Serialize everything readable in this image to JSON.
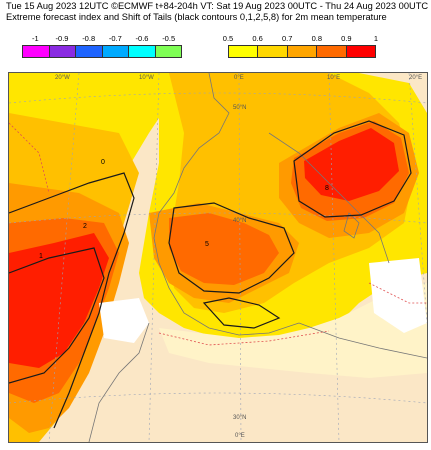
{
  "header": {
    "line1": "Tue 15 Aug 2023 12UTC ©ECMWF t+84-204h  VT: Sat 19 Aug 2023 00UTC - Thu 24 Aug 2023 00UTC",
    "line2": "Extreme forecast index and Shift of Tails (black contours 0,1,2,5,8) for 2m mean temperature"
  },
  "legend_cold": {
    "labels": [
      "-1",
      "-0.9",
      "-0.8",
      "-0.7",
      "-0.6",
      "-0.5"
    ],
    "colors": [
      "#ff00ff",
      "#8a2be2",
      "#1e64ff",
      "#00aaff",
      "#00ffff",
      "#7fff55"
    ]
  },
  "legend_warm": {
    "labels": [
      "0.5",
      "0.6",
      "0.7",
      "0.8",
      "0.9",
      "1"
    ],
    "colors": [
      "#ffff00",
      "#ffd700",
      "#ffa500",
      "#ff6a00",
      "#ff0000"
    ]
  },
  "map": {
    "lon_labels_top": [
      "20°W",
      "10°W",
      "0°E",
      "10°E",
      "20°E"
    ],
    "lat_labels": [
      "50°N",
      "40°N",
      "30°N"
    ],
    "lon_label_bottom": "0°E",
    "contour_labels": [
      "0",
      "1",
      "2",
      "5",
      "8"
    ],
    "land_color": "#fbe7c6",
    "efi_colors": {
      "e05": "#ffe600",
      "e06": "#ffc000",
      "e07": "#ff9a00",
      "e08": "#ff6a00",
      "e09": "#ff1e00"
    }
  }
}
